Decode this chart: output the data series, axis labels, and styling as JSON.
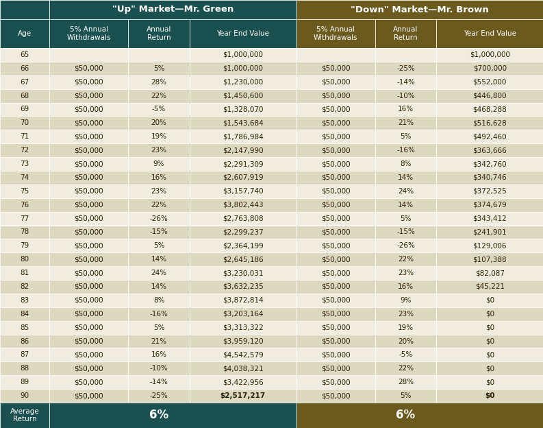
{
  "header1_text": "\"Up\" Market—Mr. Green",
  "header2_text": "\"Down\" Market—Mr. Brown",
  "header1_color": "#1a5050",
  "header2_color": "#6b5a1e",
  "row_even_color": "#f0ede0",
  "row_odd_color": "#ddd8c0",
  "footer_color1": "#1a5050",
  "footer_color2": "#6b5a1e",
  "text_color_dark": "#2a2000",
  "text_color_white": "#ffffff",
  "col_headers": [
    "Age",
    "5% Annual\nWithdrawals",
    "Annual\nReturn",
    "Year End Value",
    "5% Annual\nWithdrawals",
    "Annual\nReturn",
    "Year End Value"
  ],
  "ages": [
    65,
    66,
    67,
    68,
    69,
    70,
    71,
    72,
    73,
    74,
    75,
    76,
    77,
    78,
    79,
    80,
    81,
    82,
    83,
    84,
    85,
    86,
    87,
    88,
    89,
    90
  ],
  "green_withdrawals": [
    "",
    "$50,000",
    "$50,000",
    "$50,000",
    "$50,000",
    "$50,000",
    "$50,000",
    "$50,000",
    "$50,000",
    "$50,000",
    "$50,000",
    "$50,000",
    "$50,000",
    "$50,000",
    "$50,000",
    "$50,000",
    "$50,000",
    "$50,000",
    "$50,000",
    "$50,000",
    "$50,000",
    "$50,000",
    "$50,000",
    "$50,000",
    "$50,000",
    "$50,000"
  ],
  "green_returns": [
    "",
    "5%",
    "28%",
    "22%",
    "-5%",
    "20%",
    "19%",
    "23%",
    "9%",
    "16%",
    "23%",
    "22%",
    "-26%",
    "-15%",
    "5%",
    "14%",
    "24%",
    "14%",
    "8%",
    "-16%",
    "5%",
    "21%",
    "16%",
    "-10%",
    "-14%",
    "-25%"
  ],
  "green_values": [
    "$1,000,000",
    "$1,000,000",
    "$1,230,000",
    "$1,450,600",
    "$1,328,070",
    "$1,543,684",
    "$1,786,984",
    "$2,147,990",
    "$2,291,309",
    "$2,607,919",
    "$3,157,740",
    "$3,802,443",
    "$2,763,808",
    "$2,299,237",
    "$2,364,199",
    "$2,645,186",
    "$3,230,031",
    "$3,632,235",
    "$3,872,814",
    "$3,203,164",
    "$3,313,322",
    "$3,959,120",
    "$4,542,579",
    "$4,038,321",
    "$3,422,956",
    "$2,517,217"
  ],
  "brown_withdrawals": [
    "",
    "$50,000",
    "$50,000",
    "$50,000",
    "$50,000",
    "$50,000",
    "$50,000",
    "$50,000",
    "$50,000",
    "$50,000",
    "$50,000",
    "$50,000",
    "$50,000",
    "$50,000",
    "$50,000",
    "$50,000",
    "$50,000",
    "$50,000",
    "$50,000",
    "$50,000",
    "$50,000",
    "$50,000",
    "$50,000",
    "$50,000",
    "$50,000",
    "$50,000"
  ],
  "brown_returns": [
    "",
    "-25%",
    "-14%",
    "-10%",
    "16%",
    "21%",
    "5%",
    "-16%",
    "8%",
    "14%",
    "24%",
    "14%",
    "5%",
    "-15%",
    "-26%",
    "22%",
    "23%",
    "16%",
    "9%",
    "23%",
    "19%",
    "20%",
    "-5%",
    "22%",
    "28%",
    "5%"
  ],
  "brown_values": [
    "$1,000,000",
    "$700,000",
    "$552,000",
    "$446,800",
    "$468,288",
    "$516,628",
    "$492,460",
    "$363,666",
    "$342,760",
    "$340,746",
    "$372,525",
    "$374,679",
    "$343,412",
    "$241,901",
    "$129,006",
    "$107,388",
    "$82,087",
    "$45,221",
    "$0",
    "$0",
    "$0",
    "$0",
    "$0",
    "$0",
    "$0",
    "$0"
  ],
  "green_values_bold": [
    false,
    false,
    false,
    false,
    false,
    false,
    false,
    false,
    false,
    false,
    false,
    false,
    false,
    false,
    false,
    false,
    false,
    false,
    false,
    false,
    false,
    false,
    false,
    false,
    false,
    true
  ],
  "brown_values_bold": [
    false,
    false,
    false,
    false,
    false,
    false,
    false,
    false,
    false,
    false,
    false,
    false,
    false,
    false,
    false,
    false,
    false,
    false,
    false,
    false,
    false,
    false,
    false,
    false,
    false,
    true
  ],
  "fig_width": 7.93,
  "fig_height": 6.24,
  "dpi": 100
}
